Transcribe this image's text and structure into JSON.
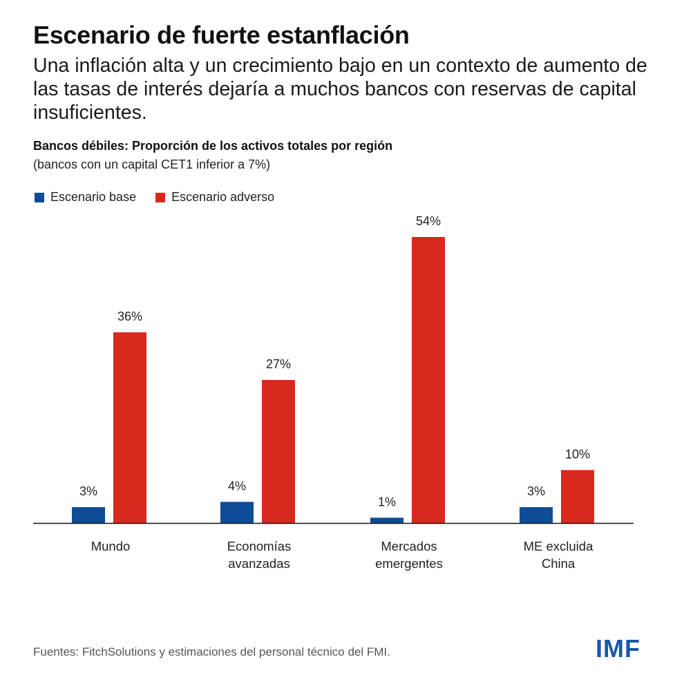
{
  "header": {
    "title": "Escenario de fuerte estanflación",
    "subtitle": "Una inflación alta y un crecimiento bajo en un contexto de aumento de las tasas de interés dejaría a muchos bancos con reservas de capital insuficientes."
  },
  "chart_data": {
    "type": "bar",
    "title": "Bancos débiles: Proporción de los activos totales por región",
    "subtitle": "(bancos con un capital CET1 inferior a 7%)",
    "categories": [
      [
        "Mundo"
      ],
      [
        "Economías",
        "avanzadas"
      ],
      [
        "Mercados",
        "emergentes"
      ],
      [
        "ME excluida",
        "China"
      ]
    ],
    "series": [
      {
        "name": "Escenario base",
        "color": "#0f4c97",
        "values": [
          3,
          4,
          1,
          3
        ],
        "labels": [
          "3%",
          "4%",
          "1%",
          "3%"
        ]
      },
      {
        "name": "Escenario adverso",
        "color": "#d8291f",
        "values": [
          36,
          27,
          54,
          10
        ],
        "labels": [
          "36%",
          "27%",
          "54%",
          "10%"
        ]
      }
    ],
    "ylim": [
      0,
      54
    ],
    "grid": false,
    "legend_position": "top-left"
  },
  "footer": {
    "source": "Fuentes: FitchSolutions y estimaciones del personal técnico del FMI.",
    "logo": "IMF"
  }
}
